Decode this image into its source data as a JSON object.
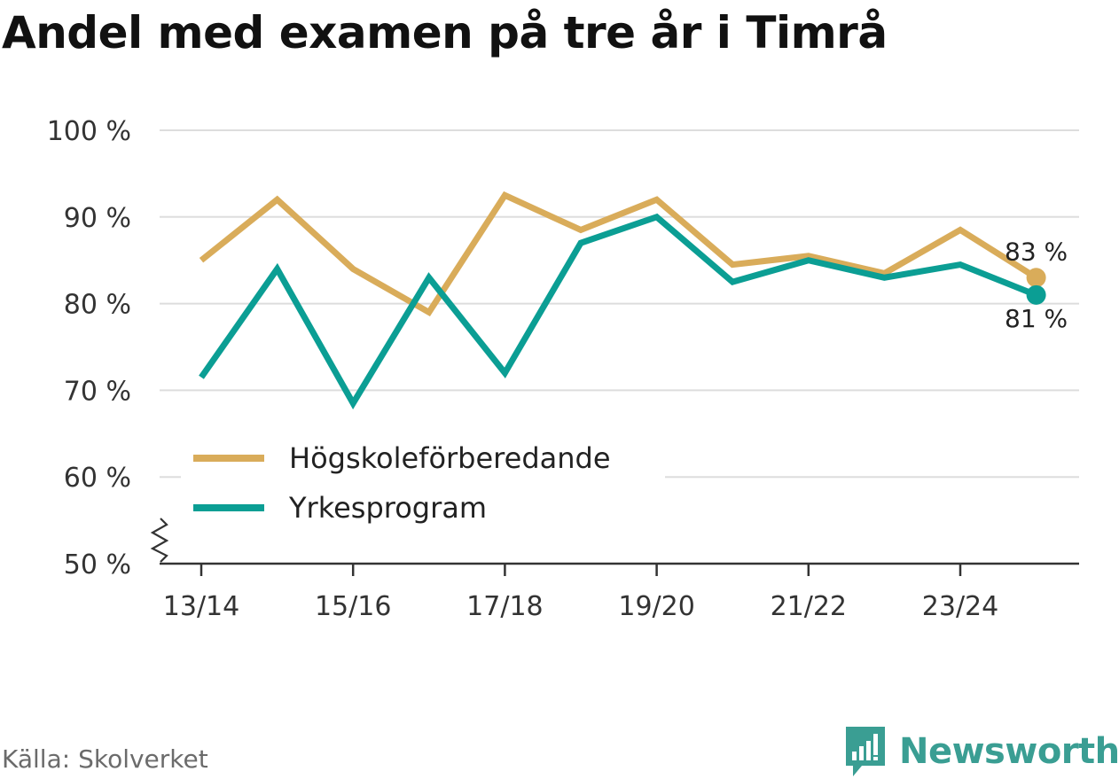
{
  "title": "Andel med examen på tre år i Timrå",
  "source": "Källa: Skolverket",
  "brand": {
    "name": "Newsworthy",
    "icon": "bar-chart-logo-icon",
    "color": "#3a9e93"
  },
  "chart_data": {
    "type": "line",
    "title": "Andel med examen på tre år i Timrå",
    "xlabel": "",
    "ylabel": "",
    "x": [
      "13/14",
      "14/15",
      "15/16",
      "16/17",
      "17/18",
      "18/19",
      "19/20",
      "20/21",
      "21/22",
      "22/23",
      "23/24",
      "24/25"
    ],
    "x_tick_labels": [
      "13/14",
      "15/16",
      "17/18",
      "19/20",
      "21/22",
      "23/24"
    ],
    "ylim": [
      50,
      100
    ],
    "y_ticks": [
      50,
      60,
      70,
      80,
      90,
      100
    ],
    "y_tick_labels": [
      "50 %",
      "60 %",
      "70 %",
      "80 %",
      "90 %",
      "100 %"
    ],
    "grid": true,
    "y_axis_break": true,
    "legend_position": "bottom-left",
    "series": [
      {
        "name": "Högskoleförberedande",
        "color": "#d9ac5a",
        "values": [
          85,
          92,
          84,
          79,
          92.5,
          88.5,
          92,
          84.5,
          85.5,
          83.5,
          88.5,
          83
        ],
        "end_label": "83 %"
      },
      {
        "name": "Yrkesprogram",
        "color": "#0b9e94",
        "values": [
          71.5,
          84,
          68.5,
          83,
          72,
          87,
          90,
          82.5,
          85,
          83,
          84.5,
          81
        ],
        "end_label": "81 %"
      }
    ]
  }
}
